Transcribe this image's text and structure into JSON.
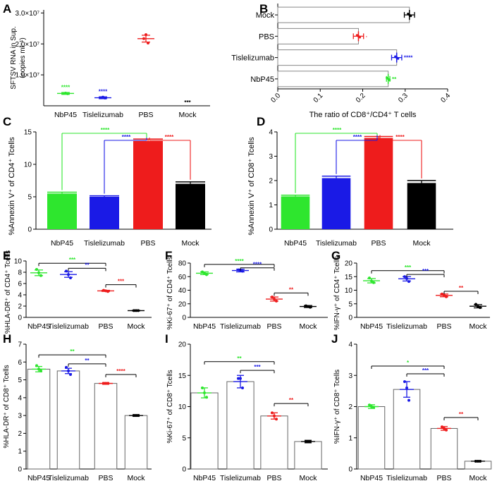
{
  "colors": {
    "green": "#2ee62e",
    "blue": "#1a1ae6",
    "red": "#ee1c1c",
    "black": "#000000",
    "axis": "#000000"
  },
  "categories": [
    "NbP45",
    "Tislelizumab",
    "PBS",
    "Mock"
  ],
  "chart_data": [
    {
      "panel": "A",
      "type": "scatter",
      "ylabel_html": "SFTSV RNA in Sup.",
      "ylabel_line1": "SFTSV RNA in Sup.",
      "ylabel_line2": "(copies ml⁻¹)",
      "categories": [
        "NbP45",
        "Tislelizumab",
        "PBS",
        "Mock"
      ],
      "yticks": [
        {
          "v": 10000000,
          "label": "1.0×10⁷"
        },
        {
          "v": 20000000,
          "label": "2.0×10⁷"
        },
        {
          "v": 30000000,
          "label": "3.0×10⁷"
        }
      ],
      "ylim": [
        0,
        31000000
      ],
      "points": [
        [
          4000000,
          3900000,
          4100000
        ],
        [
          2600000,
          2500000,
          2800000
        ],
        [
          21700000,
          20300000,
          23000000
        ],
        [
          0,
          0,
          0
        ]
      ],
      "means": [
        4000000,
        2600000,
        21700000,
        0
      ],
      "errs": [
        300000,
        300000,
        1100000,
        0
      ],
      "sig": [
        "****",
        "****",
        "",
        ""
      ],
      "mock_label": "***"
    },
    {
      "panel": "B",
      "type": "hbar",
      "xlabel": "The ratio of CD8⁺/CD4⁺ T cells",
      "categories": [
        "Mock",
        "PBS",
        "Tislelizumab",
        "NbP45"
      ],
      "values": [
        0.31,
        0.19,
        0.28,
        0.26
      ],
      "errs": [
        0.012,
        0.012,
        0.012,
        0.004
      ],
      "xlim": [
        0,
        0.4
      ],
      "xticks": [
        "0.0",
        "0.1",
        "0.2",
        "0.3",
        "0.4"
      ],
      "sig": [
        "",
        "·",
        "****",
        "**"
      ]
    },
    {
      "panel": "C",
      "type": "bar",
      "ylabel": "%Annexin V⁺ of CD4⁺ Tcells",
      "categories": [
        "NbP45",
        "Tislelizumab",
        "PBS",
        "Mock"
      ],
      "values": [
        5.5,
        5.0,
        13.6,
        7.0
      ],
      "errs": [
        0.2,
        0.15,
        0.3,
        0.3
      ],
      "ylim": [
        0,
        15
      ],
      "yticks": [
        0,
        5,
        10,
        15
      ],
      "brackets": [
        {
          "from": 0,
          "to": 2,
          "label": "****",
          "color": "green"
        },
        {
          "from": 1,
          "to": 2,
          "label": "****",
          "color": "blue"
        },
        {
          "from": 3,
          "to": 2,
          "label": "****",
          "color": "red"
        }
      ]
    },
    {
      "panel": "D",
      "type": "bar",
      "ylabel": "%Annexin V⁺ of CD8⁺ Tcells",
      "categories": [
        "NbP45",
        "Tislelizumab",
        "PBS",
        "Mock"
      ],
      "values": [
        1.35,
        2.1,
        3.75,
        1.9
      ],
      "errs": [
        0.05,
        0.08,
        0.06,
        0.1
      ],
      "ylim": [
        0,
        4
      ],
      "yticks": [
        0,
        1,
        2,
        3,
        4
      ],
      "brackets": [
        {
          "from": 0,
          "to": 2,
          "label": "****",
          "color": "green"
        },
        {
          "from": 1,
          "to": 2,
          "label": "****",
          "color": "blue"
        },
        {
          "from": 3,
          "to": 2,
          "label": "****",
          "color": "red"
        }
      ]
    },
    {
      "panel": "E",
      "type": "scatter",
      "ylabel": "%HLA-DR⁺ of CD4⁺ Tcells",
      "categories": [
        "NbP45",
        "Tislelizumab",
        "PBS",
        "Mock"
      ],
      "means": [
        7.9,
        7.6,
        4.7,
        1.2
      ],
      "errs": [
        0.5,
        0.5,
        0.1,
        0.05
      ],
      "points": [
        [
          8.5,
          7.4,
          7.9
        ],
        [
          8.2,
          7.0,
          7.6
        ],
        [
          4.8,
          4.6,
          4.7
        ],
        [
          1.2,
          1.2,
          1.2
        ]
      ],
      "ylim": [
        0,
        10
      ],
      "yticks": [
        0,
        2,
        4,
        6,
        8,
        10
      ],
      "brackets": [
        {
          "a": 0,
          "b": 2,
          "label": "***",
          "color": "green",
          "y": 9.6
        },
        {
          "a": 1,
          "b": 2,
          "label": "**",
          "color": "blue",
          "y": 8.7
        },
        {
          "a": 2,
          "b": 3,
          "label": "***",
          "color": "red",
          "y": 5.8
        }
      ]
    },
    {
      "panel": "F",
      "type": "scatter",
      "ylabel": "%Ki-67⁺ of CD4⁺ Tcells",
      "categories": [
        "NbP45",
        "Tislelizumab",
        "PBS",
        "Mock"
      ],
      "means": [
        65,
        69,
        27,
        16
      ],
      "errs": [
        2,
        2,
        3,
        1.5
      ],
      "points": [
        [
          67,
          63,
          65
        ],
        [
          70,
          68,
          69
        ],
        [
          30,
          24,
          27
        ],
        [
          17,
          15,
          16
        ]
      ],
      "ylim": [
        0,
        80
      ],
      "yticks": [
        0,
        20,
        40,
        60,
        80
      ],
      "brackets": [
        {
          "a": 0,
          "b": 2,
          "label": "****",
          "color": "green",
          "y": 78
        },
        {
          "a": 1,
          "b": 2,
          "label": "****",
          "color": "blue",
          "y": 73
        },
        {
          "a": 2,
          "b": 3,
          "label": "**",
          "color": "red",
          "y": 36
        }
      ]
    },
    {
      "panel": "G",
      "type": "scatter",
      "ylabel": "%IFN-γ⁺ of CD4⁺ Tcells",
      "categories": [
        "NbP45",
        "Tislelizumab",
        "PBS",
        "Mock"
      ],
      "means": [
        13.5,
        14.2,
        8.1,
        4.1
      ],
      "errs": [
        0.8,
        0.8,
        0.5,
        0.6
      ],
      "points": [
        [
          14.5,
          12.8,
          13.4
        ],
        [
          15.0,
          13.2,
          14.3
        ],
        [
          8.6,
          7.6,
          8.1
        ],
        [
          4.8,
          3.6,
          4.0
        ]
      ],
      "ylim": [
        0,
        20
      ],
      "yticks": [
        0,
        5,
        10,
        15,
        20
      ],
      "brackets": [
        {
          "a": 0,
          "b": 2,
          "label": "***",
          "color": "green",
          "y": 17.2
        },
        {
          "a": 1,
          "b": 2,
          "label": "***",
          "color": "blue",
          "y": 15.8
        },
        {
          "a": 2,
          "b": 3,
          "label": "**",
          "color": "red",
          "y": 9.6
        }
      ]
    },
    {
      "panel": "H",
      "type": "barscatter",
      "ylabel": "%HLA-DR⁺ of CD8⁺ Tcells",
      "categories": [
        "NbP45",
        "Tislelizumab",
        "PBS",
        "Mock"
      ],
      "values": [
        5.6,
        5.5,
        4.8,
        3.0
      ],
      "errs": [
        0.15,
        0.15,
        0.05,
        0.05
      ],
      "points": [
        [
          5.8,
          5.5,
          5.6
        ],
        [
          5.7,
          5.3,
          5.5
        ],
        [
          4.8,
          4.8,
          4.8
        ],
        [
          3.0,
          3.0,
          3.0
        ]
      ],
      "ylim": [
        0,
        7
      ],
      "yticks": [
        0,
        1,
        2,
        3,
        4,
        5,
        6,
        7
      ],
      "brackets": [
        {
          "a": 0,
          "b": 2,
          "label": "**",
          "color": "green",
          "y": 6.4
        },
        {
          "a": 1,
          "b": 2,
          "label": "**",
          "color": "blue",
          "y": 5.9
        },
        {
          "a": 2,
          "b": 3,
          "label": "****",
          "color": "red",
          "y": 5.3
        }
      ]
    },
    {
      "panel": "I",
      "type": "barscatter",
      "ylabel": "%Ki-67⁺ of CD8⁺ Tcells",
      "categories": [
        "NbP45",
        "Tislelizumab",
        "PBS",
        "Mock"
      ],
      "values": [
        12.2,
        14.0,
        8.5,
        4.4
      ],
      "errs": [
        0.8,
        1.0,
        0.5,
        0.2
      ],
      "points": [
        [
          13.0,
          11.5,
          12.2
        ],
        [
          14.5,
          13.0,
          14.5
        ],
        [
          9.0,
          8.0,
          8.5
        ],
        [
          4.4,
          4.4,
          4.4
        ]
      ],
      "ylim": [
        0,
        20
      ],
      "yticks": [
        0,
        5,
        10,
        15,
        20
      ],
      "brackets": [
        {
          "a": 0,
          "b": 2,
          "label": "**",
          "color": "green",
          "y": 17.2
        },
        {
          "a": 1,
          "b": 2,
          "label": "***",
          "color": "blue",
          "y": 15.8
        },
        {
          "a": 2,
          "b": 3,
          "label": "**",
          "color": "red",
          "y": 10.5
        }
      ]
    },
    {
      "panel": "J",
      "type": "barscatter",
      "ylabel": "%IFN-γ⁺ of CD8⁺ Tcells",
      "categories": [
        "NbP45",
        "Tislelizumab",
        "PBS",
        "Mock"
      ],
      "values": [
        2.0,
        2.55,
        1.3,
        0.25
      ],
      "errs": [
        0.06,
        0.25,
        0.06,
        0.02
      ],
      "points": [
        [
          2.05,
          1.98,
          2.0
        ],
        [
          2.8,
          2.2,
          2.6
        ],
        [
          1.35,
          1.25,
          1.3
        ],
        [
          0.25,
          0.25,
          0.25
        ]
      ],
      "ylim": [
        0,
        4
      ],
      "yticks": [
        0,
        1,
        2,
        3,
        4
      ],
      "brackets": [
        {
          "a": 0,
          "b": 2,
          "label": "*",
          "color": "green",
          "y": 3.3
        },
        {
          "a": 1,
          "b": 2,
          "label": "***",
          "color": "blue",
          "y": 3.05
        },
        {
          "a": 2,
          "b": 3,
          "label": "**",
          "color": "red",
          "y": 1.65
        }
      ]
    }
  ]
}
